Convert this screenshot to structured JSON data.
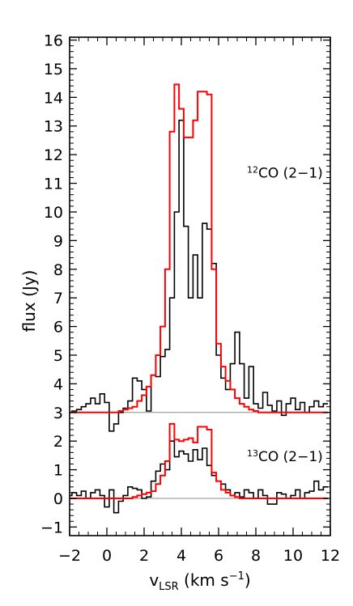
{
  "chart_data": {
    "type": "line",
    "title": "",
    "xlabel": {
      "base": "v",
      "sub": "LSR",
      "units": " (km s",
      "exp": "−1",
      "close": ")"
    },
    "ylabel": "flux (Jy)",
    "xlim": [
      -2,
      12
    ],
    "ylim": [
      -1.3,
      16.1
    ],
    "x_ticks": [
      -2,
      0,
      2,
      4,
      6,
      8,
      10,
      12
    ],
    "x_tick_labels": [
      "−2",
      "0",
      "2",
      "4",
      "6",
      "8",
      "10",
      "12"
    ],
    "y_ticks": [
      -1,
      0,
      1,
      2,
      3,
      4,
      5,
      6,
      7,
      8,
      9,
      10,
      11,
      12,
      13,
      14,
      15,
      16
    ],
    "y_tick_labels": [
      "−1",
      "0",
      "1",
      "2",
      "3",
      "4",
      "5",
      "6",
      "7",
      "8",
      "9",
      "10",
      "11",
      "12",
      "13",
      "14",
      "15",
      "16"
    ],
    "baselines": [
      3,
      0
    ],
    "annotations": [
      {
        "sup": "12",
        "text": "CO (2−1)",
        "x": 11.6,
        "y": 11.2
      },
      {
        "sup": "13",
        "text": "CO (2−1)",
        "x": 11.6,
        "y": 1.3
      }
    ],
    "step_width": 0.25,
    "series": [
      {
        "color": "#000000",
        "x": [
          -2.0,
          -1.75,
          -1.5,
          -1.25,
          -1.0,
          -0.75,
          -0.5,
          -0.25,
          0.0,
          0.25,
          0.5,
          0.75,
          1.0,
          1.25,
          1.5,
          1.75,
          2.0,
          2.25,
          2.5,
          2.75,
          3.0,
          3.25,
          3.5,
          3.75,
          4.0,
          4.25,
          4.5,
          4.75,
          5.0,
          5.25,
          5.5,
          5.75,
          6.0,
          6.25,
          6.5,
          6.75,
          7.0,
          7.25,
          7.5,
          7.75,
          8.0,
          8.25,
          8.5,
          8.75,
          9.0,
          9.25,
          9.5,
          9.75,
          10.0,
          10.25,
          10.5,
          10.75,
          11.0,
          11.25,
          11.5,
          11.75
        ],
        "y": [
          3.0,
          3.05,
          3.1,
          3.2,
          3.3,
          3.5,
          3.3,
          3.65,
          3.35,
          2.35,
          2.6,
          3.0,
          3.15,
          3.4,
          4.2,
          4.1,
          3.8,
          3.05,
          4.3,
          4.25,
          4.95,
          5.2,
          7.0,
          10.0,
          13.2,
          9.5,
          7.0,
          8.5,
          7.0,
          9.6,
          9.4,
          8.2,
          5.0,
          4.2,
          3.8,
          4.7,
          5.8,
          4.7,
          3.5,
          4.6,
          3.3,
          3.15,
          3.7,
          3.25,
          3.05,
          3.4,
          2.9,
          3.3,
          3.5,
          3.1,
          3.35,
          3.0,
          3.2,
          3.4,
          3.2,
          3.3
        ]
      },
      {
        "color": "#ff0000",
        "x": [
          -2.0,
          -1.75,
          -1.5,
          -1.25,
          -1.0,
          -0.75,
          -0.5,
          -0.25,
          0.0,
          0.25,
          0.5,
          0.75,
          1.0,
          1.25,
          1.5,
          1.75,
          2.0,
          2.25,
          2.5,
          2.75,
          3.0,
          3.25,
          3.5,
          3.75,
          4.0,
          4.25,
          4.5,
          4.75,
          5.0,
          5.25,
          5.5,
          5.75,
          6.0,
          6.25,
          6.5,
          6.75,
          7.0,
          7.25,
          7.5,
          7.75,
          8.0,
          8.25,
          8.5,
          8.75,
          9.0,
          9.25,
          9.5,
          9.75,
          10.0,
          10.25,
          10.5,
          10.75,
          11.0,
          11.25,
          11.5,
          11.75
        ],
        "y": [
          3.0,
          3.0,
          3.0,
          3.0,
          3.0,
          3.0,
          3.0,
          3.0,
          3.0,
          3.0,
          3.0,
          3.05,
          3.1,
          3.15,
          3.2,
          3.4,
          3.6,
          3.9,
          4.3,
          5.0,
          6.0,
          8.0,
          12.8,
          14.45,
          13.6,
          12.6,
          12.6,
          13.2,
          14.2,
          14.2,
          14.1,
          8.0,
          5.4,
          4.6,
          4.1,
          3.8,
          3.5,
          3.3,
          3.2,
          3.1,
          3.05,
          3.0,
          3.0,
          3.0,
          3.0,
          3.0,
          3.0,
          3.0,
          3.0,
          3.0,
          3.0,
          3.0,
          3.0,
          3.0,
          3.0,
          3.0
        ]
      },
      {
        "color": "#000000",
        "x": [
          -2.0,
          -1.75,
          -1.5,
          -1.25,
          -1.0,
          -0.75,
          -0.5,
          -0.25,
          0.0,
          0.25,
          0.5,
          0.75,
          1.0,
          1.25,
          1.5,
          1.75,
          2.0,
          2.25,
          2.5,
          2.75,
          3.0,
          3.25,
          3.5,
          3.75,
          4.0,
          4.25,
          4.5,
          4.75,
          5.0,
          5.25,
          5.5,
          5.75,
          6.0,
          6.25,
          6.5,
          6.75,
          7.0,
          7.25,
          7.5,
          7.75,
          8.0,
          8.25,
          8.5,
          8.75,
          9.0,
          9.25,
          9.5,
          9.75,
          10.0,
          10.25,
          10.5,
          10.75,
          11.0,
          11.25,
          11.5,
          11.75
        ],
        "y": [
          0.1,
          0.2,
          0.1,
          0.25,
          0.0,
          0.2,
          0.3,
          0.1,
          -0.3,
          0.3,
          -0.5,
          -0.1,
          0.1,
          0.4,
          0.35,
          0.3,
          0.0,
          0.05,
          0.6,
          0.95,
          1.2,
          1.0,
          2.0,
          1.45,
          1.65,
          1.55,
          1.3,
          1.7,
          1.35,
          1.75,
          1.15,
          0.8,
          0.6,
          0.5,
          0.3,
          0.1,
          0.2,
          0.05,
          0.3,
          0.2,
          0.0,
          0.3,
          0.1,
          -0.2,
          -0.2,
          0.2,
          0.15,
          0.0,
          0.1,
          0.3,
          0.0,
          0.2,
          0.25,
          0.6,
          0.3,
          0.4
        ]
      },
      {
        "color": "#ff0000",
        "x": [
          -2.0,
          -1.75,
          -1.5,
          -1.25,
          -1.0,
          -0.75,
          -0.5,
          -0.25,
          0.0,
          0.25,
          0.5,
          0.75,
          1.0,
          1.25,
          1.5,
          1.75,
          2.0,
          2.25,
          2.5,
          2.75,
          3.0,
          3.25,
          3.5,
          3.75,
          4.0,
          4.25,
          4.5,
          4.75,
          5.0,
          5.25,
          5.5,
          5.75,
          6.0,
          6.25,
          6.5,
          6.75,
          7.0,
          7.25,
          7.5,
          7.75,
          8.0,
          8.25,
          8.5,
          8.75,
          9.0,
          9.25,
          9.5,
          9.75,
          10.0,
          10.25,
          10.5,
          10.75,
          11.0,
          11.25,
          11.5,
          11.75
        ],
        "y": [
          0.0,
          0.0,
          0.0,
          0.0,
          0.0,
          0.0,
          0.0,
          0.0,
          0.0,
          0.0,
          0.0,
          0.0,
          0.0,
          0.0,
          0.05,
          0.1,
          0.15,
          0.2,
          0.25,
          0.5,
          0.8,
          1.3,
          2.6,
          2.05,
          2.0,
          2.05,
          2.1,
          1.95,
          2.5,
          2.5,
          2.4,
          0.9,
          0.6,
          0.3,
          0.2,
          0.1,
          0.05,
          0.0,
          0.0,
          0.0,
          0.0,
          0.0,
          0.0,
          0.0,
          0.0,
          0.0,
          0.0,
          0.0,
          0.0,
          0.0,
          0.0,
          0.0,
          0.0,
          0.0,
          0.0,
          0.0
        ]
      }
    ]
  }
}
